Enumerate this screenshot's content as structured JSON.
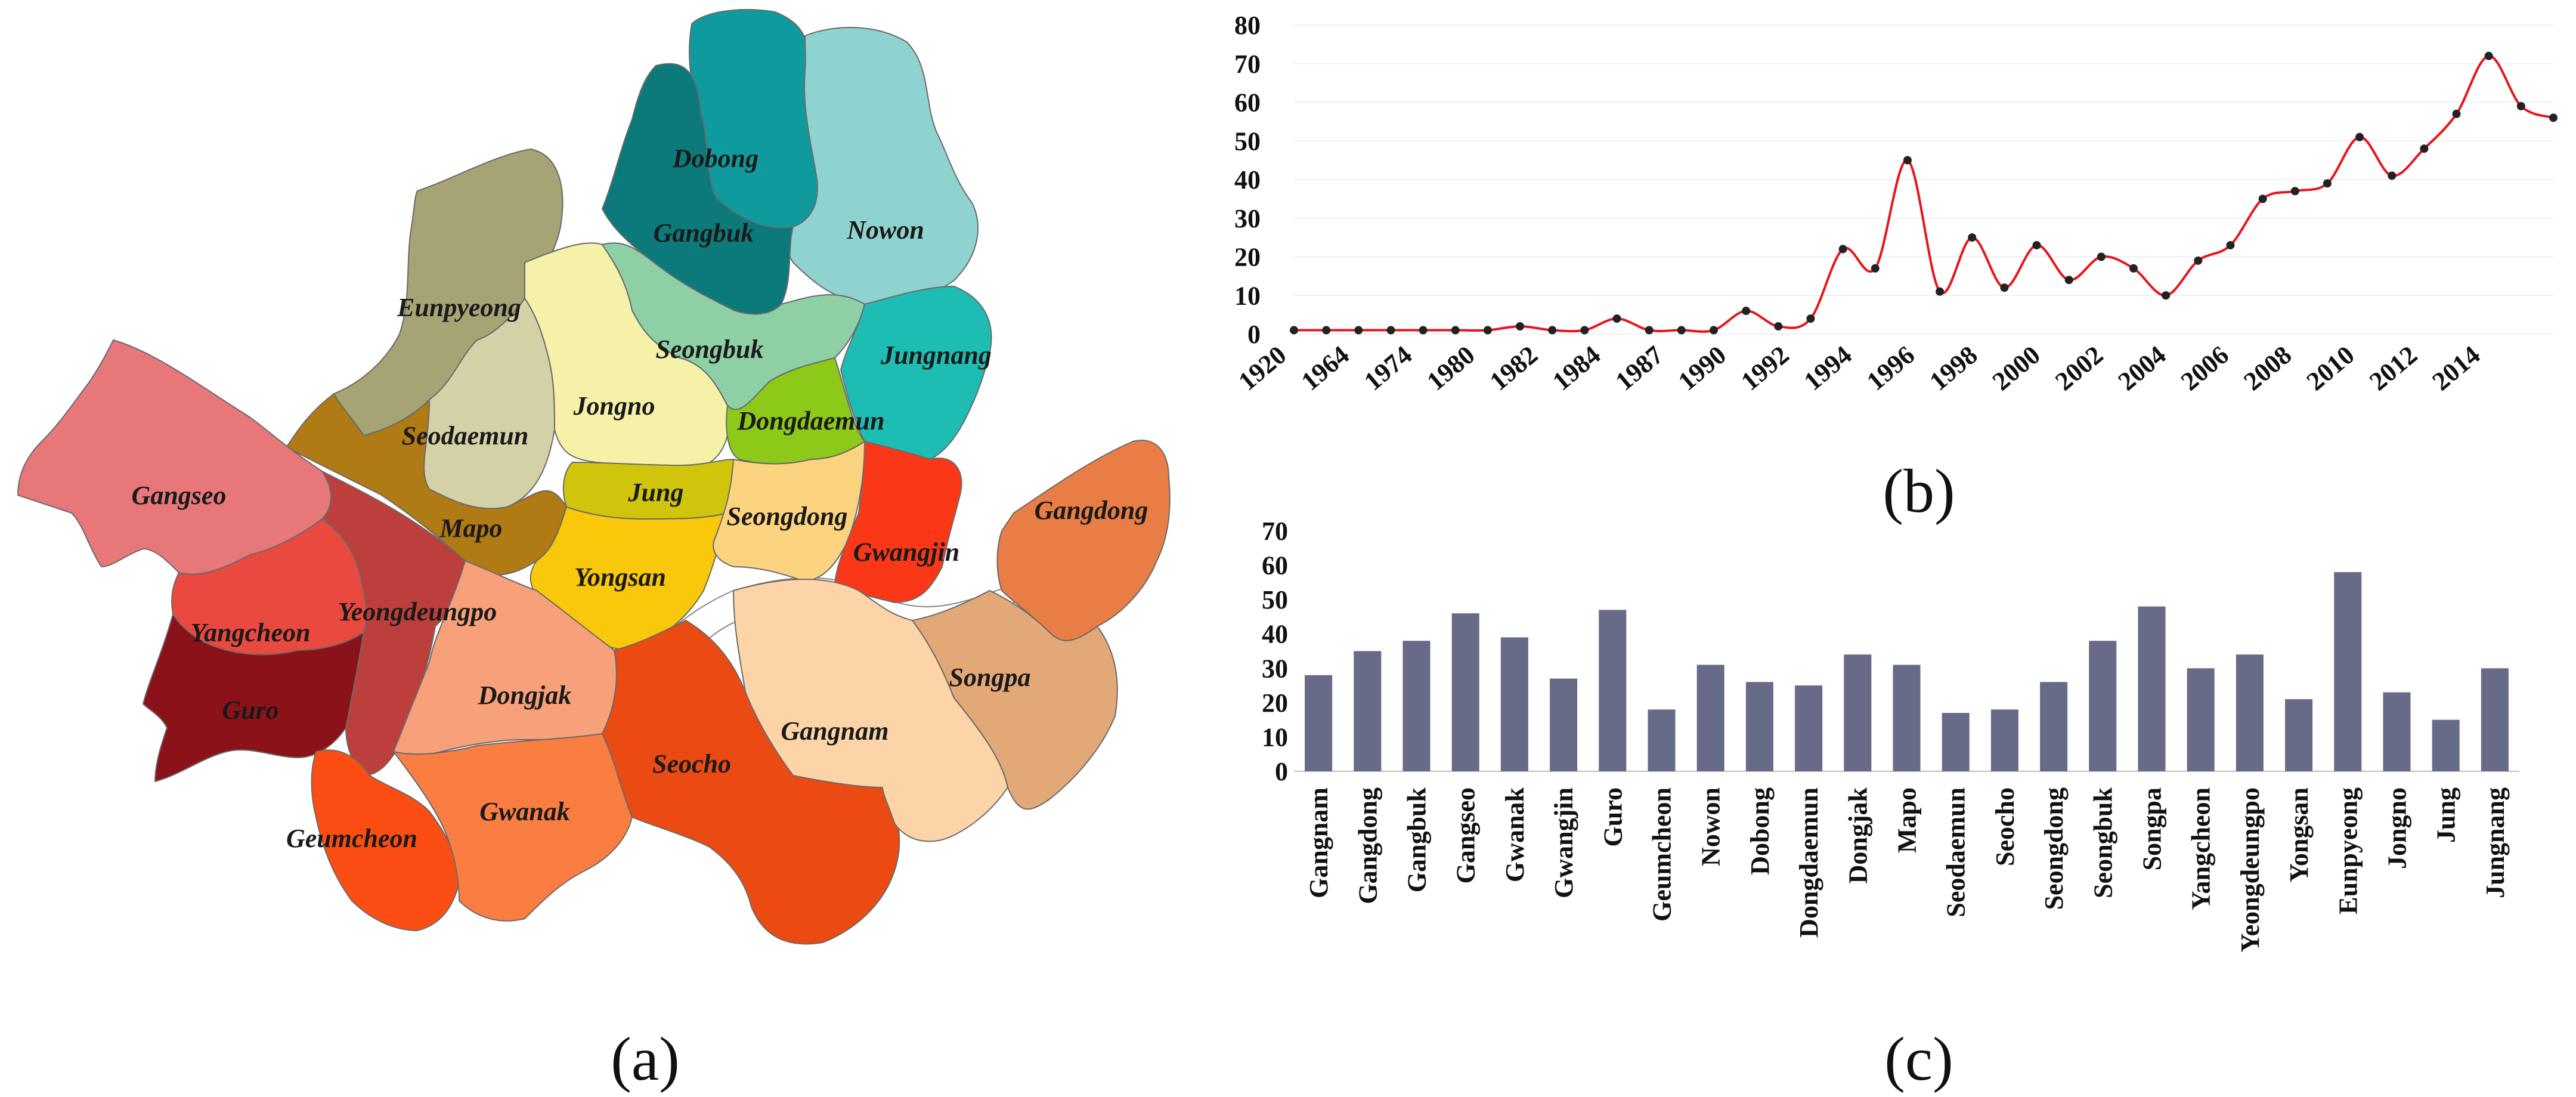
{
  "panels": {
    "a": "(a)",
    "b": "(b)",
    "c": "(c)"
  },
  "map": {
    "districts": [
      {
        "key": "dobong",
        "name": "Dobong",
        "color": "#0f9b9e"
      },
      {
        "key": "nowon",
        "name": "Nowon",
        "color": "#8fd3d0"
      },
      {
        "key": "gangbuk",
        "name": "Gangbuk",
        "color": "#0c7a7a"
      },
      {
        "key": "eunpyeong",
        "name": "Eunpyeong",
        "color": "#a6a474"
      },
      {
        "key": "seodaemun",
        "name": "Seodaemun",
        "color": "#d4d1a6"
      },
      {
        "key": "jongno",
        "name": "Jongno",
        "color": "#f5f1a8"
      },
      {
        "key": "seongbuk",
        "name": "Seongbuk",
        "color": "#8ecfa5"
      },
      {
        "key": "jungnang",
        "name": "Jungnang",
        "color": "#1ebdb3"
      },
      {
        "key": "dongdaemun",
        "name": "Dongdaemun",
        "color": "#8cc919"
      },
      {
        "key": "jung",
        "name": "Jung",
        "color": "#d1c50c"
      },
      {
        "key": "mapo",
        "name": "Mapo",
        "color": "#b07a14"
      },
      {
        "key": "yongsan",
        "name": "Yongsan",
        "color": "#f9c80a"
      },
      {
        "key": "seongdong",
        "name": "Seongdong",
        "color": "#fcd37e"
      },
      {
        "key": "gwangjin",
        "name": "Gwangjin",
        "color": "#fa3817"
      },
      {
        "key": "gangdong",
        "name": "Gangdong",
        "color": "#e87e45"
      },
      {
        "key": "gangseo",
        "name": "Gangseo",
        "color": "#e8777a"
      },
      {
        "key": "yangcheon",
        "name": "Yangcheon",
        "color": "#e9493f"
      },
      {
        "key": "yeongdeungpo",
        "name": "Yeongdeungpo",
        "color": "#bd3f3c"
      },
      {
        "key": "guro",
        "name": "Guro",
        "color": "#8b1218"
      },
      {
        "key": "geumcheon",
        "name": "Geumcheon",
        "color": "#fc4e12"
      },
      {
        "key": "dongjak",
        "name": "Dongjak",
        "color": "#f7a07a"
      },
      {
        "key": "gwanak",
        "name": "Gwanak",
        "color": "#fa7d42"
      },
      {
        "key": "seocho",
        "name": "Seocho",
        "color": "#eb4a12"
      },
      {
        "key": "gangnam",
        "name": "Gangnam",
        "color": "#fcd4a8"
      },
      {
        "key": "songpa",
        "name": "Songpa",
        "color": "#e3a878"
      }
    ]
  },
  "chart_data": [
    {
      "panel": "(b)",
      "type": "line",
      "title": "",
      "xlabel": "",
      "ylabel": "",
      "ylim": [
        0,
        80
      ],
      "yticks": [
        0,
        10,
        20,
        30,
        40,
        50,
        60,
        70,
        80
      ],
      "x_tick_labels": [
        "1920",
        "1964",
        "1974",
        "1980",
        "1982",
        "1984",
        "1987",
        "1990",
        "1992",
        "1994",
        "1996",
        "1998",
        "2000",
        "2002",
        "2004",
        "2006",
        "2008",
        "2010",
        "2012",
        "2014"
      ],
      "line_color": "#e8141a",
      "marker_color": "#222222",
      "values": [
        1,
        1,
        1,
        1,
        1,
        1,
        1,
        2,
        1,
        1,
        4,
        1,
        1,
        1,
        6,
        2,
        4,
        22,
        17,
        45,
        11,
        25,
        12,
        23,
        14,
        20,
        17,
        10,
        19,
        23,
        35,
        37,
        39,
        51,
        41,
        48,
        57,
        72,
        59,
        56
      ]
    },
    {
      "panel": "(c)",
      "type": "bar",
      "title": "",
      "xlabel": "",
      "ylabel": "",
      "ylim": [
        0,
        70
      ],
      "yticks": [
        0,
        10,
        20,
        30,
        40,
        50,
        60,
        70
      ],
      "bar_color": "#676b87",
      "categories": [
        "Gangnam",
        "Gangdong",
        "Gangbuk",
        "Gangseo",
        "Gwanak",
        "Gwangjin",
        "Guro",
        "Geumcheon",
        "Nowon",
        "Dobong",
        "Dongdaemun",
        "Dongjak",
        "Mapo",
        "Seodaemun",
        "Seocho",
        "Seongdong",
        "Seongbuk",
        "Songpa",
        "Yangcheon",
        "Yeongdeungpo",
        "Yongsan",
        "Eunpyeong",
        "Jongno",
        "Jung",
        "Jungnang"
      ],
      "values": [
        28,
        35,
        38,
        46,
        39,
        27,
        47,
        18,
        31,
        26,
        25,
        34,
        31,
        17,
        18,
        26,
        38,
        48,
        30,
        34,
        21,
        58,
        23,
        15,
        30
      ]
    }
  ]
}
